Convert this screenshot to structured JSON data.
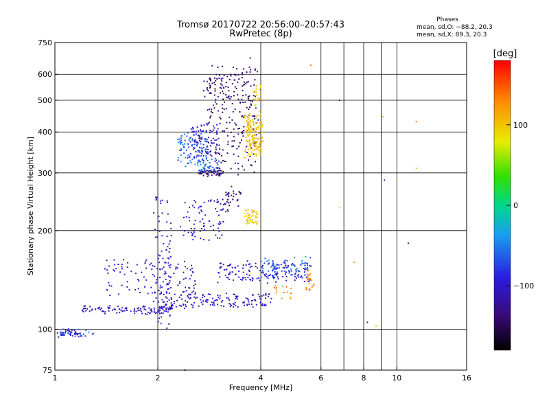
{
  "chart_data": {
    "type": "scatter",
    "title": "Tromsø 20170722 20:56:00–20:57:43",
    "subtitle": "RwPretec (8p)",
    "xlabel": "Frequency [MHz]",
    "ylabel": "Stationary phase Virtual Height [km]",
    "x_scale": "log",
    "y_scale": "log",
    "xlim": [
      1,
      16
    ],
    "ylim": [
      75,
      750
    ],
    "x_ticks": [
      1,
      2,
      4,
      6,
      8,
      10,
      16
    ],
    "x_tick_labels": [
      "1",
      "2",
      "4",
      "6",
      "8",
      "10",
      "16"
    ],
    "x_grid": [
      2,
      4,
      6,
      8,
      10
    ],
    "x_minor": [
      7,
      9
    ],
    "y_ticks": [
      75,
      100,
      200,
      300,
      400,
      500,
      600,
      750
    ],
    "y_tick_labels": [
      "75",
      "100",
      "200",
      "300",
      "400",
      "500",
      "600",
      "750"
    ],
    "y_grid": [
      100,
      200,
      300,
      400,
      500,
      600
    ],
    "grid": true,
    "phases_info": {
      "heading": "Phases",
      "line_o": "mean, sd,O: −88.2, 20.3",
      "line_x": "mean, sd,X:  89.3, 20.3"
    },
    "colorbar": {
      "unit": "[deg]",
      "range": [
        -180,
        180
      ],
      "ticks": [
        100,
        0,
        -100
      ],
      "tick_labels": [
        "100",
        "0",
        "−100"
      ]
    },
    "series": [
      {
        "color_value": -100,
        "color": "#1f5fe0",
        "segments": [
          {
            "f1": 1.0,
            "f2": 1.22,
            "h1": 95,
            "h2": 99,
            "n": 40,
            "spread": 0.012
          },
          {
            "f1": 1.2,
            "f2": 2.2,
            "h1": 112,
            "h2": 117,
            "n": 110,
            "spread": 0.012
          },
          {
            "f1": 2.1,
            "f2": 4.3,
            "h1": 117,
            "h2": 128,
            "n": 140,
            "spread": 0.014
          },
          {
            "f1": 3.0,
            "f2": 5.6,
            "h1": 140,
            "h2": 160,
            "n": 150,
            "spread": 0.016
          },
          {
            "f1": 1.4,
            "f2": 2.6,
            "h1": 125,
            "h2": 160,
            "n": 120,
            "spread": 0.03
          },
          {
            "f1": 1.95,
            "f2": 2.2,
            "h1": 100,
            "h2": 260,
            "n": 90,
            "spread": 0.012
          },
          {
            "f1": 2.35,
            "f2": 3.1,
            "h1": 250,
            "h2": 185,
            "n": 80,
            "spread": 0.018
          },
          {
            "f1": 2.5,
            "f2": 3.0,
            "h1": 340,
            "h2": 420,
            "n": 90,
            "spread": 0.03
          }
        ]
      },
      {
        "color_value": -140,
        "color": "#3010b0",
        "segments": [
          {
            "f1": 2.8,
            "f2": 3.9,
            "h1": 300,
            "h2": 650,
            "n": 220,
            "spread": 0.04
          },
          {
            "f1": 2.65,
            "f2": 3.1,
            "h1": 295,
            "h2": 305,
            "n": 50,
            "spread": 0.01
          },
          {
            "f1": 2.7,
            "f2": 3.4,
            "h1": 520,
            "h2": 590,
            "n": 40,
            "spread": 0.04
          },
          {
            "f1": 3.1,
            "f2": 3.5,
            "h1": 230,
            "h2": 270,
            "n": 35,
            "spread": 0.025
          }
        ]
      },
      {
        "color_value": -60,
        "color": "#10a8d8",
        "segments": [
          {
            "f1": 2.3,
            "f2": 2.8,
            "h1": 320,
            "h2": 390,
            "n": 90,
            "spread": 0.025
          },
          {
            "f1": 2.6,
            "f2": 3.0,
            "h1": 300,
            "h2": 330,
            "n": 40,
            "spread": 0.015
          },
          {
            "f1": 4.0,
            "f2": 5.6,
            "h1": 145,
            "h2": 165,
            "n": 60,
            "spread": 0.015
          },
          {
            "f1": 1.0,
            "f2": 1.3,
            "h1": 96,
            "h2": 100,
            "n": 20,
            "spread": 0.01
          }
        ]
      },
      {
        "color_value": 100,
        "color": "#e6e020",
        "segments": [
          {
            "f1": 3.6,
            "f2": 4.05,
            "h1": 340,
            "h2": 450,
            "n": 160,
            "spread": 0.03
          },
          {
            "f1": 3.6,
            "f2": 3.9,
            "h1": 210,
            "h2": 230,
            "n": 50,
            "spread": 0.015
          },
          {
            "f1": 3.8,
            "f2": 4.0,
            "h1": 480,
            "h2": 560,
            "n": 20,
            "spread": 0.02
          }
        ]
      },
      {
        "color_value": 130,
        "color": "#f0a020",
        "segments": [
          {
            "f1": 5.4,
            "f2": 5.7,
            "h1": 130,
            "h2": 150,
            "n": 25,
            "spread": 0.02
          },
          {
            "f1": 4.4,
            "f2": 5.0,
            "h1": 125,
            "h2": 135,
            "n": 15,
            "spread": 0.02
          }
        ]
      }
    ],
    "scatter_points": [
      {
        "x": 6.8,
        "y": 500,
        "v": -120
      },
      {
        "x": 6.8,
        "y": 235,
        "v": 90
      },
      {
        "x": 9.2,
        "y": 285,
        "v": -120
      },
      {
        "x": 9.1,
        "y": 445,
        "v": 110
      },
      {
        "x": 11.4,
        "y": 430,
        "v": 140
      },
      {
        "x": 11.4,
        "y": 310,
        "v": 60
      },
      {
        "x": 10.8,
        "y": 183,
        "v": -110
      },
      {
        "x": 8.2,
        "y": 105,
        "v": -110
      },
      {
        "x": 7.5,
        "y": 160,
        "v": 120
      },
      {
        "x": 8.7,
        "y": 102,
        "v": 100
      },
      {
        "x": 2.4,
        "y": 75,
        "v": -110
      },
      {
        "x": 5.6,
        "y": 640,
        "v": 140
      }
    ]
  }
}
